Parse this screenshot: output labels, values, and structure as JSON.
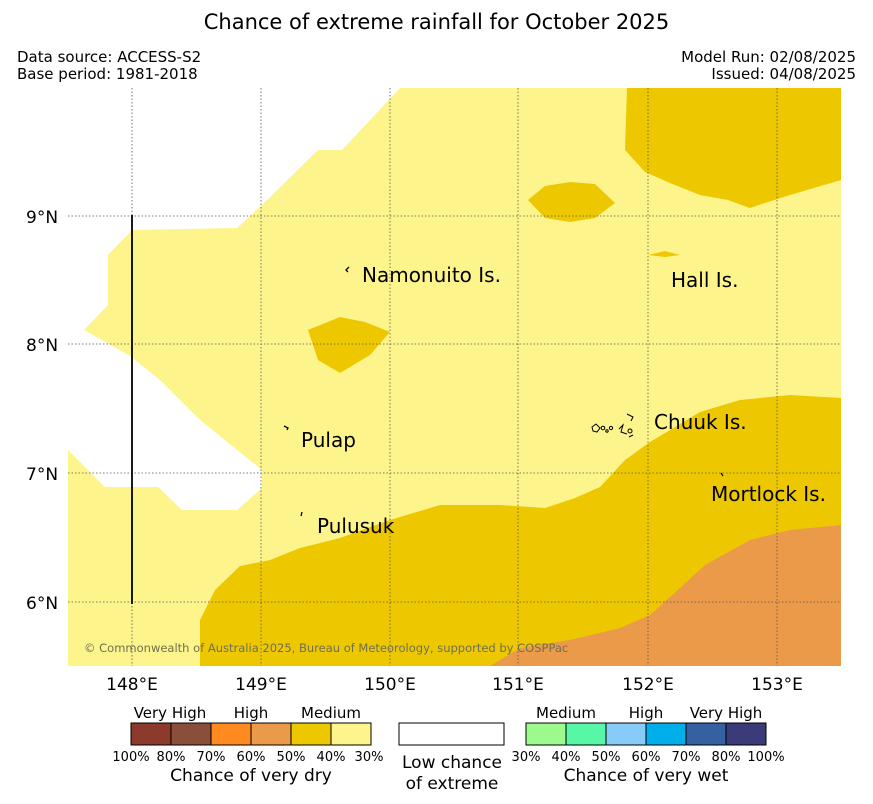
{
  "header": {
    "title": "Chance of extreme rainfall for October 2025",
    "data_source": "Data source: ACCESS-S2",
    "base_period": "Base period: 1981-2018",
    "model_run": "Model Run: 02/08/2025",
    "issued": "Issued: 04/08/2025"
  },
  "map": {
    "lat_labels": [
      "9°N",
      "8°N",
      "7°N",
      "6°N"
    ],
    "lon_labels": [
      "148°E",
      "149°E",
      "150°E",
      "151°E",
      "152°E",
      "153°E"
    ],
    "places": {
      "namonuito": "Namonuito Is.",
      "hall": "Hall Is.",
      "pulap": "Pulap",
      "chuuk": "Chuuk Is.",
      "mortlock": "Mortlock Is.",
      "pulusuk": "Pulusuk"
    },
    "copyright": "© Commonwealth of Australia 2025, Bureau of Meteorology, supported by COSPPac",
    "colors": {
      "dry_30_40": "#fdf58c",
      "dry_40_50": "#edc800",
      "dry_50_60": "#eb9a4a",
      "ocean_low": "#ffffff"
    }
  },
  "legend": {
    "dry": {
      "categories": [
        "Very High",
        "High",
        "Medium"
      ],
      "ticks": [
        "100%",
        "80%",
        "70%",
        "60%",
        "50%",
        "40%",
        "30%"
      ],
      "colors": [
        "#8b3a2b",
        "#8b4e3b",
        "#ff8a1f",
        "#eb9a4a",
        "#edc800",
        "#fdf58c"
      ],
      "caption": "Chance of very dry"
    },
    "low": {
      "line1": "Low chance",
      "line2": "of extreme"
    },
    "wet": {
      "categories": [
        "Medium",
        "High",
        "Very High"
      ],
      "ticks": [
        "30%",
        "40%",
        "50%",
        "60%",
        "70%",
        "80%",
        "100%"
      ],
      "colors": [
        "#9dfb8e",
        "#58f7a8",
        "#87ccf8",
        "#00aeea",
        "#3561a3",
        "#3a3b78"
      ],
      "caption": "Chance of very wet"
    }
  }
}
